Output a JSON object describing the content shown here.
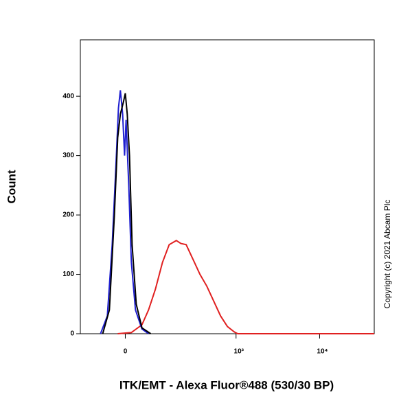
{
  "chart_data": {
    "type": "line",
    "x_label": "ITK/EMT - Alexa Fluor®488 (530/30 BP)",
    "y_label": "Count",
    "annotation": "Copyright (c) 2021 Abcam Plc",
    "xscale": "biexponential",
    "xlim": [
      -150,
      45000
    ],
    "xticks": [
      0,
      {
        "value": 1000,
        "label": "10³"
      },
      {
        "value": 10000,
        "label": "10⁴"
      }
    ],
    "ylim": [
      0,
      495
    ],
    "yticks": [
      0,
      100,
      200,
      300,
      400
    ],
    "series": [
      {
        "color": "#e02020",
        "x": [
          -20,
          16,
          45,
          65,
          88,
          115,
          145,
          182,
          209,
          245,
          300,
          365,
          443,
          537,
          651,
          788,
          953,
          1048,
          45000
        ],
        "values": [
          0,
          2,
          15,
          40,
          75,
          120,
          150,
          157,
          152,
          150,
          125,
          100,
          80,
          55,
          30,
          12,
          3,
          0,
          0
        ]
      },
      {
        "color": "#1f1fd0",
        "x": [
          -70,
          -49,
          -35,
          -25,
          -18,
          -13,
          -7,
          -2,
          2,
          9,
          16,
          27,
          45,
          65
        ],
        "values": [
          0,
          30,
          150,
          280,
          380,
          410,
          370,
          300,
          360,
          250,
          120,
          40,
          8,
          0
        ]
      },
      {
        "color": "#000000",
        "x": [
          -63,
          -43,
          -29,
          -20,
          -13,
          -5,
          0,
          5,
          11,
          18,
          29,
          45,
          72
        ],
        "values": [
          0,
          40,
          200,
          330,
          370,
          390,
          405,
          370,
          300,
          150,
          50,
          10,
          0
        ]
      }
    ]
  }
}
